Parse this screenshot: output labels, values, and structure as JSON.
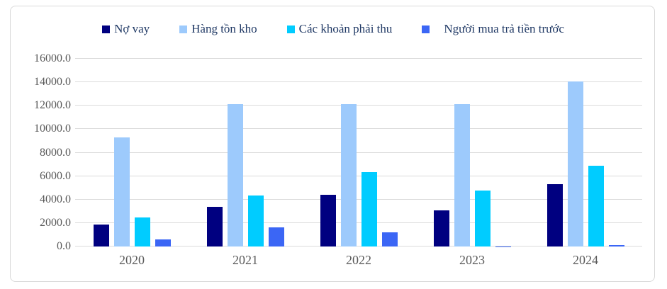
{
  "chart_data": {
    "type": "bar",
    "title": "",
    "xlabel": "",
    "ylabel": "",
    "categories": [
      "2020",
      "2021",
      "2022",
      "2023",
      "2024"
    ],
    "series": [
      {
        "name": "Nợ vay",
        "color": "#000080",
        "values": [
          1900,
          3400,
          4400,
          3050,
          5300
        ]
      },
      {
        "name": "Hàng tồn kho",
        "color": "#9DCAFC",
        "values": [
          9300,
          12150,
          12150,
          12150,
          14050
        ]
      },
      {
        "name": "Các khoản phải thu",
        "color": "#00CCFF",
        "values": [
          2450,
          4350,
          6350,
          4800,
          6900
        ]
      },
      {
        "name": "Người mua trả tiền trước",
        "color": "#3B66F5",
        "values": [
          620,
          1650,
          1200,
          20,
          140
        ]
      }
    ],
    "ylim": [
      0,
      16000
    ],
    "ytick_step": 2000,
    "ytick_labels": [
      "0.0",
      "2000.0",
      "4000.0",
      "6000.0",
      "8000.0",
      "10000.0",
      "12000.0",
      "14000.0",
      "16000.0"
    ],
    "legend_position": "top",
    "grid": "horizontal"
  },
  "styles": {
    "background": "#FFFFFF",
    "frame_border_color": "#D9D9D9",
    "gridline_color": "#DBDBDB",
    "axis_text_color": "#595959",
    "legend_text_color": "#1F3864"
  }
}
